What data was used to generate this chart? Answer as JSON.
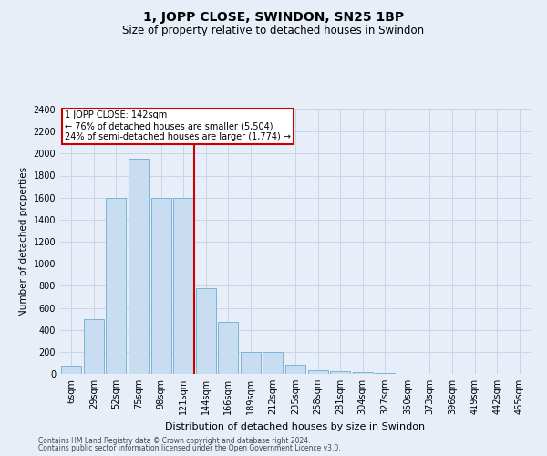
{
  "title": "1, JOPP CLOSE, SWINDON, SN25 1BP",
  "subtitle": "Size of property relative to detached houses in Swindon",
  "xlabel": "Distribution of detached houses by size in Swindon",
  "ylabel": "Number of detached properties",
  "footer_line1": "Contains HM Land Registry data © Crown copyright and database right 2024.",
  "footer_line2": "Contains public sector information licensed under the Open Government Licence v3.0.",
  "annotation_title": "1 JOPP CLOSE: 142sqm",
  "annotation_line1": "← 76% of detached houses are smaller (5,504)",
  "annotation_line2": "24% of semi-detached houses are larger (1,774) →",
  "vertical_line_x": 5.5,
  "bar_color": "#c8ddf0",
  "bar_edge_color": "#6aaed6",
  "vline_color": "#cc0000",
  "annotation_box_color": "#cc0000",
  "categories": [
    "6sqm",
    "29sqm",
    "52sqm",
    "75sqm",
    "98sqm",
    "121sqm",
    "144sqm",
    "166sqm",
    "189sqm",
    "212sqm",
    "235sqm",
    "258sqm",
    "281sqm",
    "304sqm",
    "327sqm",
    "350sqm",
    "373sqm",
    "396sqm",
    "419sqm",
    "442sqm",
    "465sqm"
  ],
  "bar_heights": [
    75,
    500,
    1600,
    1950,
    1600,
    1600,
    780,
    470,
    200,
    200,
    85,
    30,
    25,
    20,
    5,
    0,
    0,
    0,
    0,
    0,
    0
  ],
  "ylim": [
    0,
    2400
  ],
  "yticks": [
    0,
    200,
    400,
    600,
    800,
    1000,
    1200,
    1400,
    1600,
    1800,
    2000,
    2200,
    2400
  ],
  "grid_color": "#c8d4e8",
  "background_color": "#e8eef8",
  "plot_background": "#e8eef8",
  "title_fontsize": 10,
  "subtitle_fontsize": 8.5,
  "tick_fontsize": 7,
  "ylabel_fontsize": 7.5,
  "xlabel_fontsize": 8,
  "annotation_fontsize": 7,
  "footer_fontsize": 5.5
}
